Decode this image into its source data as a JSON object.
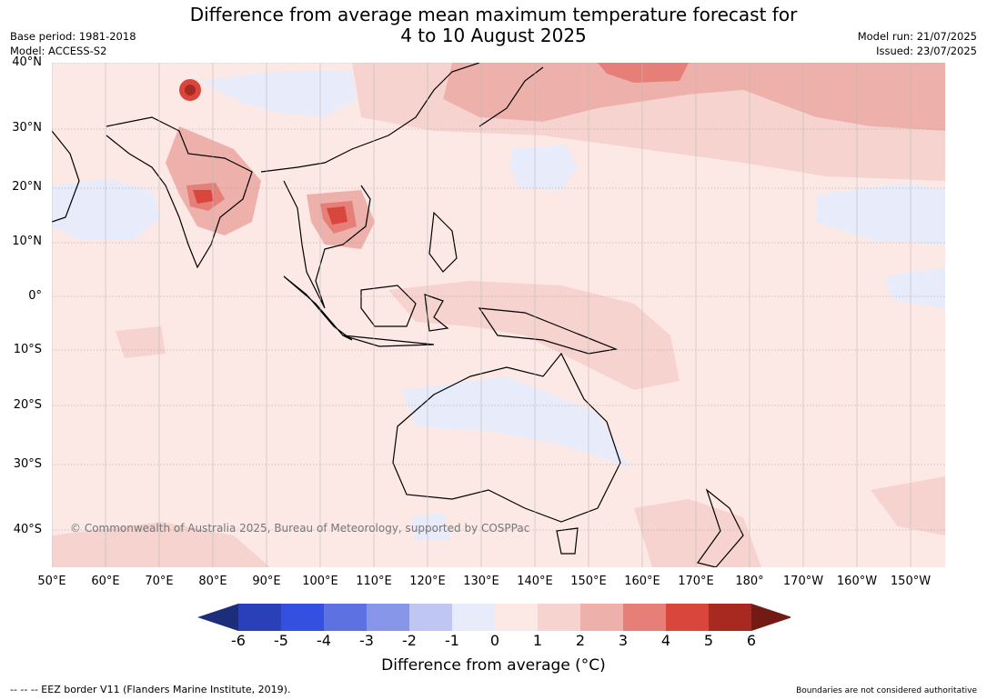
{
  "header": {
    "title_line1": "Difference from average mean maximum temperature forecast for",
    "title_line2": "4 to 10 August 2025",
    "base_period": "Base period: 1981-2018",
    "model": "Model: ACCESS-S2",
    "model_run": "Model run: 21/07/2025",
    "issued": "Issued: 23/07/2025"
  },
  "map": {
    "lat_labels": [
      "40°N",
      "30°N",
      "20°N",
      "10°N",
      "0°",
      "10°S",
      "20°S",
      "30°S",
      "40°S"
    ],
    "lon_labels": [
      "50°E",
      "60°E",
      "70°E",
      "80°E",
      "90°E",
      "100°E",
      "110°E",
      "120°E",
      "130°E",
      "140°E",
      "150°E",
      "160°E",
      "170°E",
      "180°",
      "170°W",
      "160°W",
      "150°W"
    ],
    "watermark": "© Commonwealth of Australia 2025, Bureau of Meteorology, supported by COSPPac",
    "grid": true
  },
  "colorbar": {
    "ticks": [
      "-6",
      "-5",
      "-4",
      "-3",
      "-2",
      "-1",
      "0",
      "1",
      "2",
      "3",
      "4",
      "5",
      "6"
    ],
    "colors": [
      "#1c2d7a",
      "#2a40b8",
      "#3350e0",
      "#5d72e0",
      "#8896ea",
      "#bfc6f2",
      "#e8ebfa",
      "#fce9e6",
      "#f6d3cf",
      "#eeb0aa",
      "#e57f78",
      "#d8463c",
      "#a8291f",
      "#741a14"
    ],
    "label": "Difference from average (°C)"
  },
  "footer": {
    "eez_note": "--  --  -- EEZ border V11 (Flanders Marine Institute, 2019).",
    "boundaries_note": "Boundaries are not considered authoritative"
  }
}
